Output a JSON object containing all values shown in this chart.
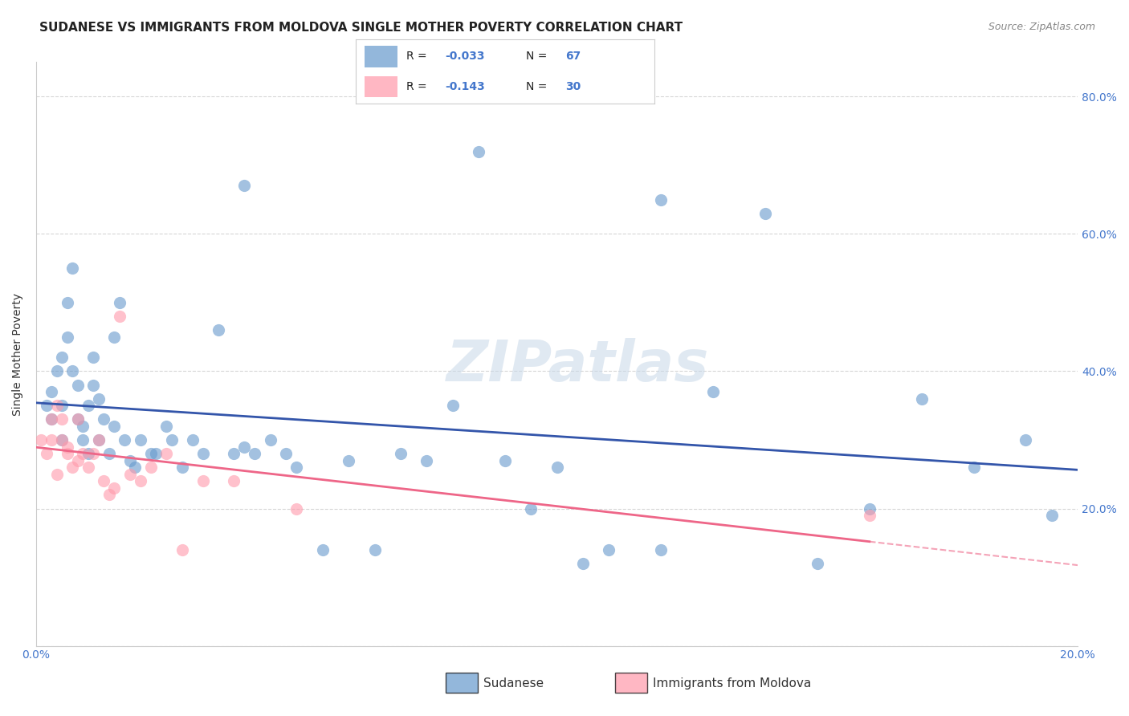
{
  "title": "SUDANESE VS IMMIGRANTS FROM MOLDOVA SINGLE MOTHER POVERTY CORRELATION CHART",
  "source": "Source: ZipAtlas.com",
  "xlabel": "",
  "ylabel": "Single Mother Poverty",
  "xlim": [
    0.0,
    0.2
  ],
  "ylim": [
    0.0,
    0.85
  ],
  "xticks": [
    0.0,
    0.04,
    0.08,
    0.12,
    0.16,
    0.2
  ],
  "yticks": [
    0.0,
    0.2,
    0.4,
    0.6,
    0.8
  ],
  "ytick_labels": [
    "",
    "20.0%",
    "40.0%",
    "60.0%",
    "80.0%"
  ],
  "xtick_labels": [
    "0.0%",
    "",
    "",
    "",
    "",
    "20.0%"
  ],
  "grid_color": "#cccccc",
  "background_color": "#ffffff",
  "watermark_text": "ZIPatlas",
  "blue_color": "#6699cc",
  "pink_color": "#ff99aa",
  "line_blue": "#3355aa",
  "line_pink": "#ee6688",
  "axis_color": "#4477cc",
  "sudanese_x": [
    0.002,
    0.003,
    0.003,
    0.004,
    0.005,
    0.005,
    0.005,
    0.006,
    0.006,
    0.007,
    0.007,
    0.008,
    0.008,
    0.009,
    0.009,
    0.01,
    0.01,
    0.011,
    0.011,
    0.012,
    0.012,
    0.013,
    0.014,
    0.015,
    0.015,
    0.016,
    0.017,
    0.018,
    0.019,
    0.02,
    0.022,
    0.023,
    0.025,
    0.026,
    0.028,
    0.03,
    0.032,
    0.035,
    0.038,
    0.04,
    0.042,
    0.045,
    0.048,
    0.05,
    0.055,
    0.06,
    0.065,
    0.07,
    0.075,
    0.08,
    0.09,
    0.095,
    0.1,
    0.105,
    0.11,
    0.12,
    0.13,
    0.14,
    0.15,
    0.16,
    0.17,
    0.18,
    0.19,
    0.195,
    0.04,
    0.085,
    0.12
  ],
  "sudanese_y": [
    0.35,
    0.33,
    0.37,
    0.4,
    0.42,
    0.3,
    0.35,
    0.45,
    0.5,
    0.55,
    0.4,
    0.38,
    0.33,
    0.32,
    0.3,
    0.28,
    0.35,
    0.42,
    0.38,
    0.36,
    0.3,
    0.33,
    0.28,
    0.32,
    0.45,
    0.5,
    0.3,
    0.27,
    0.26,
    0.3,
    0.28,
    0.28,
    0.32,
    0.3,
    0.26,
    0.3,
    0.28,
    0.46,
    0.28,
    0.29,
    0.28,
    0.3,
    0.28,
    0.26,
    0.14,
    0.27,
    0.14,
    0.28,
    0.27,
    0.35,
    0.27,
    0.2,
    0.26,
    0.12,
    0.14,
    0.14,
    0.37,
    0.63,
    0.12,
    0.2,
    0.36,
    0.26,
    0.3,
    0.19,
    0.67,
    0.72,
    0.65
  ],
  "moldova_x": [
    0.001,
    0.002,
    0.003,
    0.003,
    0.004,
    0.004,
    0.005,
    0.005,
    0.006,
    0.006,
    0.007,
    0.008,
    0.008,
    0.009,
    0.01,
    0.011,
    0.012,
    0.013,
    0.014,
    0.015,
    0.016,
    0.018,
    0.02,
    0.022,
    0.025,
    0.028,
    0.032,
    0.038,
    0.05,
    0.16
  ],
  "moldova_y": [
    0.3,
    0.28,
    0.33,
    0.3,
    0.35,
    0.25,
    0.33,
    0.3,
    0.29,
    0.28,
    0.26,
    0.33,
    0.27,
    0.28,
    0.26,
    0.28,
    0.3,
    0.24,
    0.22,
    0.23,
    0.48,
    0.25,
    0.24,
    0.26,
    0.28,
    0.14,
    0.24,
    0.24,
    0.2,
    0.19
  ]
}
